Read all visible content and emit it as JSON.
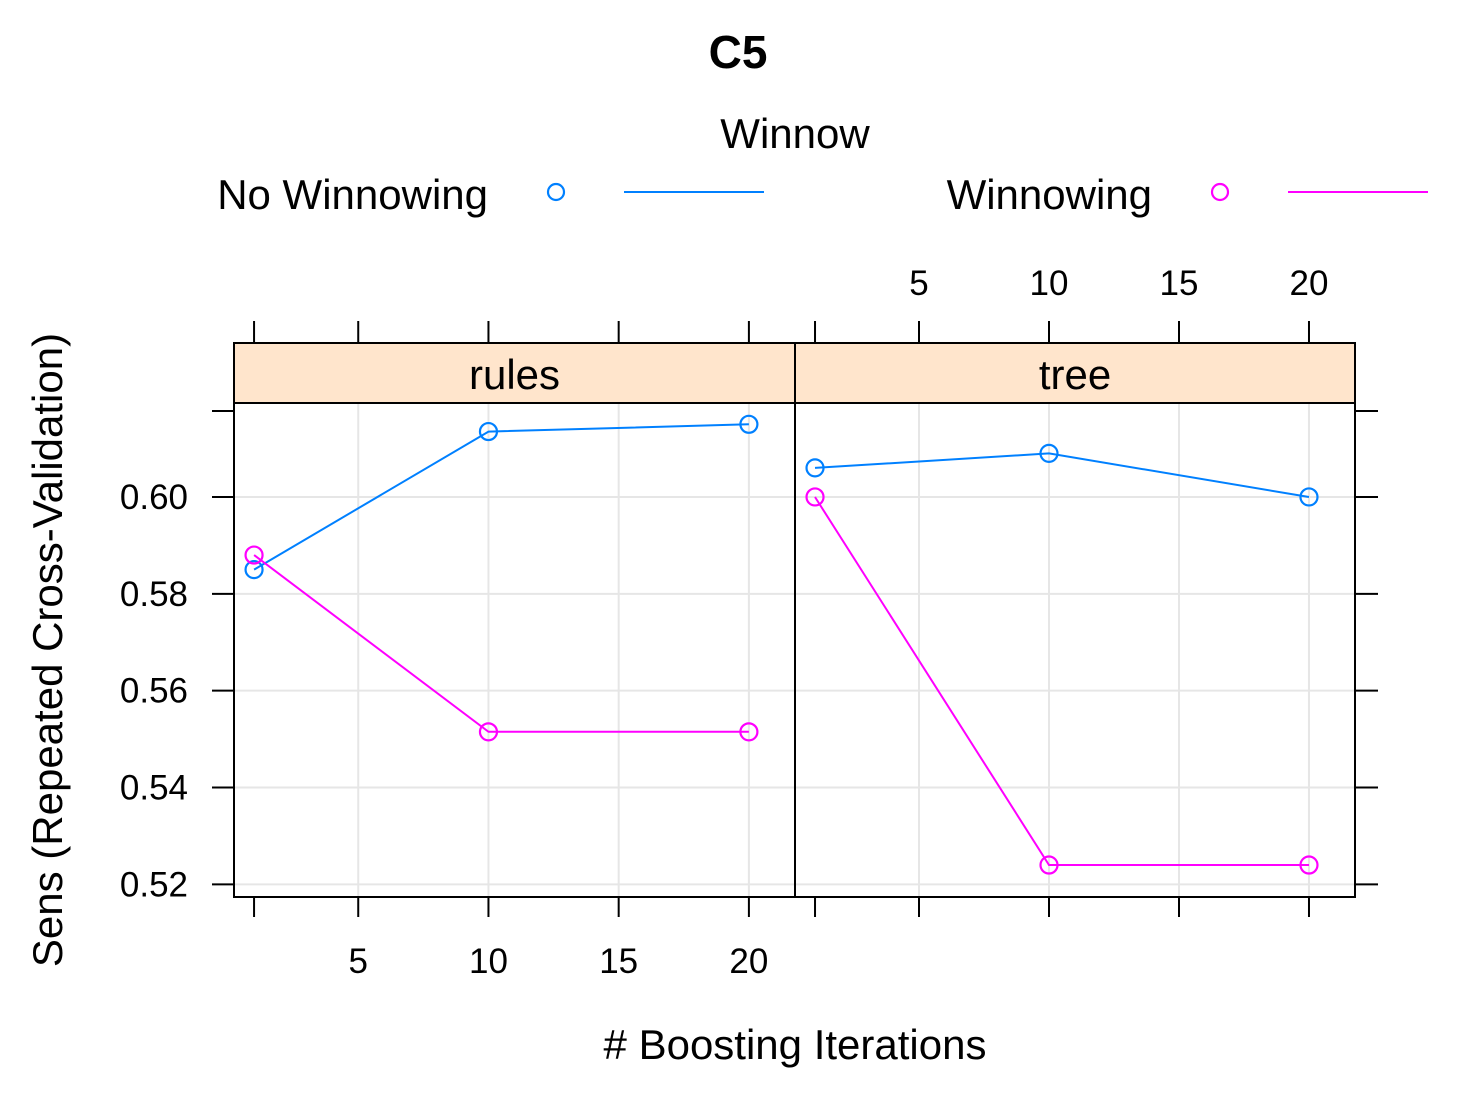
{
  "chart_data": {
    "type": "line",
    "title": "C5",
    "xlabel": "# Boosting Iterations",
    "ylabel": "Sens (Repeated Cross-Validation)",
    "legend": {
      "title": "Winnow",
      "position": "top",
      "entries": [
        {
          "name": "No Winnowing",
          "color": "#0080ff"
        },
        {
          "name": "Winnowing",
          "color": "#ff00ff"
        }
      ]
    },
    "x_ticks": [
      5,
      10,
      15,
      20
    ],
    "y_ticks": [
      "0.52",
      "0.54",
      "0.56",
      "0.58",
      "0.60"
    ],
    "xlim": [
      0.23,
      21.77
    ],
    "ylim": [
      0.5174,
      0.6194
    ],
    "grid": true,
    "panels": [
      {
        "strip": "rules",
        "series": [
          {
            "name": "No Winnowing",
            "x": [
              1,
              10,
              20
            ],
            "y": [
              0.585,
              0.6135,
              0.615
            ]
          },
          {
            "name": "Winnowing",
            "x": [
              1,
              10,
              20
            ],
            "y": [
              0.588,
              0.5515,
              0.5515
            ]
          }
        ]
      },
      {
        "strip": "tree",
        "series": [
          {
            "name": "No Winnowing",
            "x": [
              1,
              10,
              20
            ],
            "y": [
              0.606,
              0.609,
              0.6
            ]
          },
          {
            "name": "Winnowing",
            "x": [
              1,
              10,
              20
            ],
            "y": [
              0.6,
              0.524,
              0.524
            ]
          }
        ]
      }
    ]
  }
}
